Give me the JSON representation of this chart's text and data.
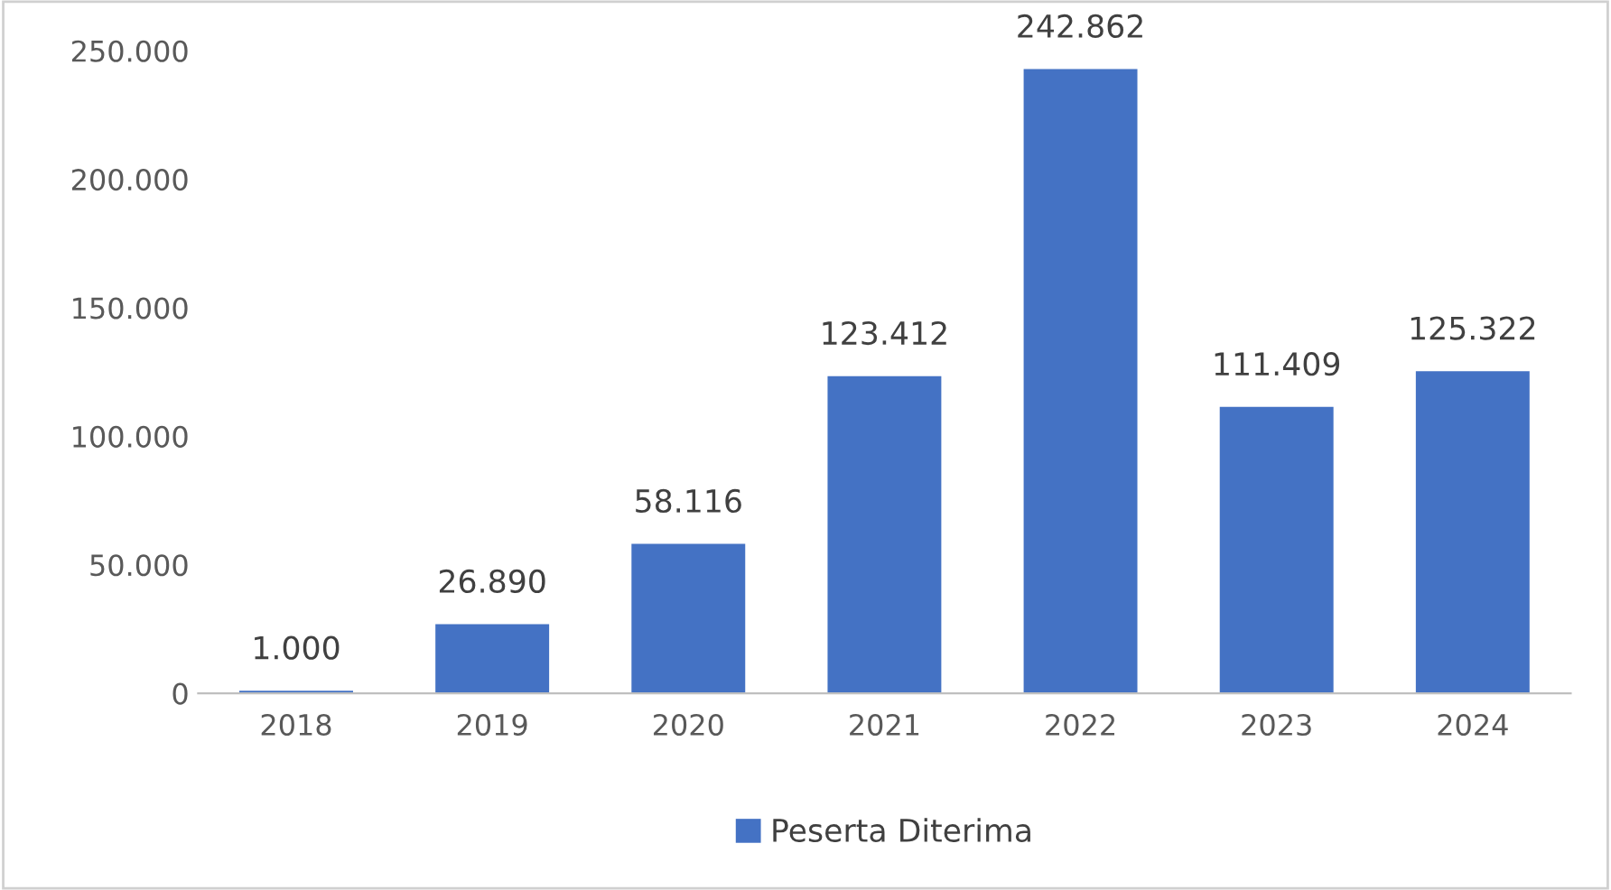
{
  "chart_data": {
    "type": "bar",
    "categories": [
      "2018",
      "2019",
      "2020",
      "2021",
      "2022",
      "2023",
      "2024"
    ],
    "series": [
      {
        "name": "Peserta Diterima",
        "color": "#4472c4",
        "values": [
          1000,
          26890,
          58116,
          123412,
          242862,
          111409,
          125322
        ],
        "value_labels": [
          "1.000",
          "26.890",
          "58.116",
          "123.412",
          "242.862",
          "111.409",
          "125.322"
        ]
      }
    ],
    "ylim": [
      0,
      250000
    ],
    "yticks": [
      {
        "value": 0,
        "label": "0"
      },
      {
        "value": 50000,
        "label": "50.000"
      },
      {
        "value": 100000,
        "label": "100.000"
      },
      {
        "value": 150000,
        "label": "150.000"
      },
      {
        "value": 200000,
        "label": "200.000"
      },
      {
        "value": 250000,
        "label": "250.000"
      }
    ],
    "grid": false,
    "legend": "bottom"
  }
}
